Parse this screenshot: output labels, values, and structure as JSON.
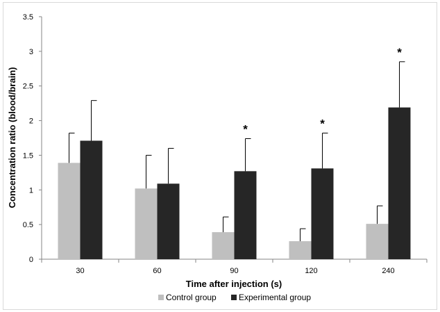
{
  "chart_data": {
    "type": "bar",
    "categories": [
      "30",
      "60",
      "90",
      "120",
      "240"
    ],
    "series": [
      {
        "name": "Control group",
        "color": "#bfbfbf",
        "values": [
          1.39,
          1.02,
          0.39,
          0.26,
          0.51
        ],
        "error_upper": [
          0.43,
          0.48,
          0.22,
          0.18,
          0.26
        ]
      },
      {
        "name": "Experimental group",
        "color": "#262626",
        "values": [
          1.71,
          1.09,
          1.27,
          1.31,
          2.19
        ],
        "error_upper": [
          0.58,
          0.51,
          0.47,
          0.51,
          0.66
        ]
      }
    ],
    "significance": [
      "",
      "",
      "*",
      "*",
      "*"
    ],
    "xlabel": "Time after injection (s)",
    "ylabel": "Concentration ratio (blood/brain)",
    "ylim": [
      0,
      3.5
    ],
    "yticks": [
      "0",
      "0.5",
      "1",
      "1.5",
      "2",
      "2.5",
      "3",
      "3.5"
    ],
    "grid": false,
    "legend_position": "bottom"
  }
}
